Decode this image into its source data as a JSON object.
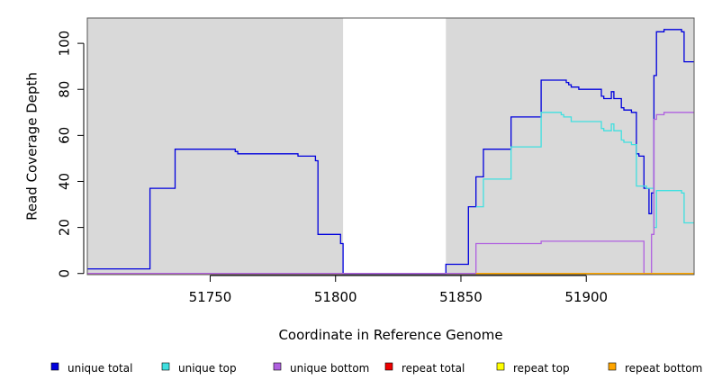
{
  "chart_data": {
    "type": "line",
    "title": "",
    "xlabel": "Coordinate in Reference Genome",
    "ylabel": "Read Coverage Depth",
    "xlim": [
      51701,
      51943
    ],
    "ylim": [
      -0.5,
      111
    ],
    "x_ticks": [
      51750,
      51800,
      51850,
      51900
    ],
    "y_ticks": [
      0,
      20,
      40,
      60,
      80,
      100
    ],
    "grid": false,
    "background_regions": [
      {
        "x_start": 51701,
        "x_end": 51803,
        "color": "#d9d9d9"
      },
      {
        "x_start": 51844,
        "x_end": 51943,
        "color": "#d9d9d9"
      }
    ],
    "legend_position": "bottom",
    "series": [
      {
        "name": "unique total",
        "color": "#0000dd",
        "step": true,
        "points": [
          [
            51701,
            2
          ],
          [
            51726,
            37
          ],
          [
            51736,
            54
          ],
          [
            51760,
            53
          ],
          [
            51761,
            52
          ],
          [
            51784,
            52
          ],
          [
            51785,
            51
          ],
          [
            51792,
            49
          ],
          [
            51793,
            17
          ],
          [
            51802,
            13
          ],
          [
            51803,
            0
          ],
          [
            51844,
            4
          ],
          [
            51853,
            29
          ],
          [
            51856,
            42
          ],
          [
            51859,
            54
          ],
          [
            51870,
            68
          ],
          [
            51882,
            84
          ],
          [
            51892,
            83
          ],
          [
            51893,
            82
          ],
          [
            51894,
            81
          ],
          [
            51897,
            80
          ],
          [
            51906,
            77
          ],
          [
            51907,
            76
          ],
          [
            51910,
            79
          ],
          [
            51911,
            76
          ],
          [
            51914,
            72
          ],
          [
            51915,
            71
          ],
          [
            51918,
            70
          ],
          [
            51920,
            52
          ],
          [
            51921,
            51
          ],
          [
            51923,
            37
          ],
          [
            51925,
            26
          ],
          [
            51926,
            35
          ],
          [
            51927,
            86
          ],
          [
            51928,
            105
          ],
          [
            51931,
            106
          ],
          [
            51938,
            105
          ],
          [
            51939,
            92
          ],
          [
            51943,
            92
          ]
        ]
      },
      {
        "name": "unique top",
        "color": "#40e0e0",
        "step": true,
        "points": [
          [
            51856,
            29
          ],
          [
            51859,
            41
          ],
          [
            51870,
            55
          ],
          [
            51882,
            70
          ],
          [
            51890,
            69
          ],
          [
            51891,
            68
          ],
          [
            51894,
            66
          ],
          [
            51906,
            63
          ],
          [
            51907,
            62
          ],
          [
            51910,
            65
          ],
          [
            51911,
            62
          ],
          [
            51914,
            58
          ],
          [
            51915,
            57
          ],
          [
            51918,
            56
          ],
          [
            51920,
            38
          ],
          [
            51924,
            37
          ],
          [
            51927,
            20
          ],
          [
            51928,
            36
          ],
          [
            51938,
            35
          ],
          [
            51939,
            22
          ],
          [
            51943,
            22
          ]
        ]
      },
      {
        "name": "unique bottom",
        "color": "#b060e0",
        "step": true,
        "points": [
          [
            51701,
            0
          ],
          [
            51856,
            13
          ],
          [
            51882,
            14
          ],
          [
            51923,
            0
          ],
          [
            51926,
            17
          ],
          [
            51927,
            67
          ],
          [
            51928,
            69
          ],
          [
            51931,
            70
          ],
          [
            51943,
            70
          ]
        ]
      },
      {
        "name": "repeat total",
        "color": "#ee0000",
        "step": true,
        "points": [
          [
            51701,
            0
          ],
          [
            51943,
            0
          ]
        ]
      },
      {
        "name": "repeat top",
        "color": "#ffff00",
        "step": true,
        "points": [
          [
            51701,
            0
          ],
          [
            51943,
            0
          ]
        ]
      },
      {
        "name": "repeat bottom",
        "color": "#ffa500",
        "step": true,
        "points": [
          [
            51856,
            0
          ],
          [
            51943,
            0
          ]
        ]
      }
    ]
  }
}
